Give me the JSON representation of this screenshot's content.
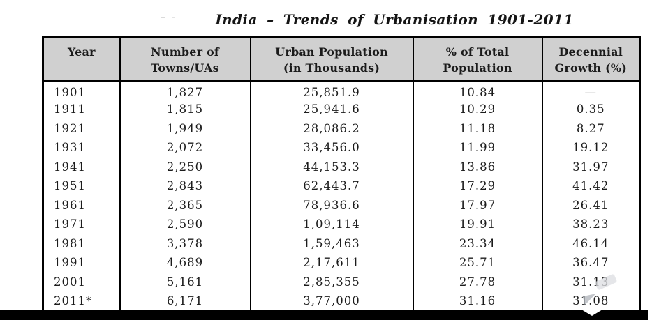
{
  "page": {
    "title": "India – Trends of Urbanisation 1901-2011"
  },
  "table": {
    "headers": [
      {
        "lines": [
          "Year"
        ]
      },
      {
        "lines": [
          "Number of",
          "Towns/UAs"
        ]
      },
      {
        "lines": [
          "Urban Population",
          "(in Thousands)"
        ]
      },
      {
        "lines": [
          "% of Total",
          "Population"
        ]
      },
      {
        "lines": [
          "Decennial",
          "Growth (%)"
        ]
      }
    ],
    "rows": [
      [
        "1901",
        "1,827",
        "25,851.9",
        "10.84",
        "—"
      ],
      [
        "1911",
        "1,815",
        "25,941.6",
        "10.29",
        "0.35"
      ],
      [
        "1921",
        "1,949",
        "28,086.2",
        "11.18",
        "8.27"
      ],
      [
        "1931",
        "2,072",
        "33,456.0",
        "11.99",
        "19.12"
      ],
      [
        "1941",
        "2,250",
        "44,153.3",
        "13.86",
        "31.97"
      ],
      [
        "1951",
        "2,843",
        "62,443.7",
        "17.29",
        "41.42"
      ],
      [
        "1961",
        "2,365",
        "78,936.6",
        "17.97",
        "26.41"
      ],
      [
        "1971",
        "2,590",
        "1,09,114",
        "19.91",
        "38.23"
      ],
      [
        "1981",
        "3,378",
        "1,59,463",
        "23.34",
        "46.14"
      ],
      [
        "1991",
        "4,689",
        "2,17,611",
        "25.71",
        "36.47"
      ],
      [
        "2001",
        "5,161",
        "2,85,355",
        "27.78",
        "31.13"
      ],
      [
        "2011*",
        "6,171",
        "3,77,000",
        "31.16",
        "31.08"
      ]
    ]
  },
  "colors": {
    "header_bg": "#d0d0d0",
    "border": "#000000",
    "text": "#1b1b1b",
    "bottom_bar": "#000000"
  }
}
